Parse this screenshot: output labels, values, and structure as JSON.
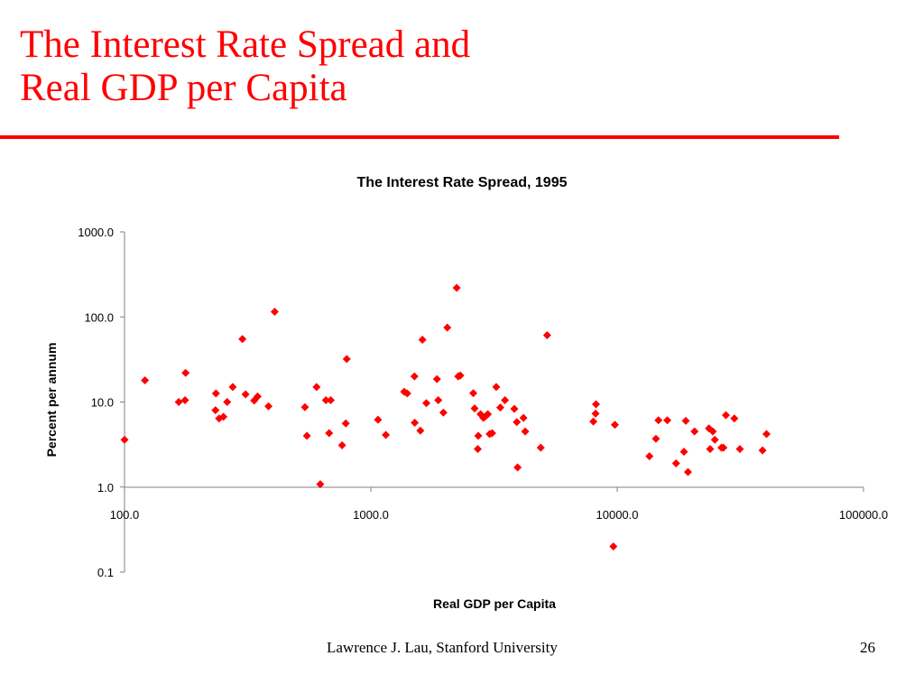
{
  "slide": {
    "title_line1": "The Interest Rate Spread and",
    "title_line2": "Real GDP per Capita",
    "accent_color": "#ff0000"
  },
  "footer": {
    "author": "Lawrence J. Lau, Stanford University",
    "page_number": "26"
  },
  "chart_data": {
    "type": "scatter",
    "title": "The Interest Rate Spread, 1995",
    "xlabel": "Real GDP per Capita",
    "ylabel": "Percent per annum",
    "x_scale": "log",
    "y_scale": "log",
    "xlim": [
      100,
      100000
    ],
    "ylim": [
      0.1,
      1000
    ],
    "x_ticks": [
      "100.0",
      "1000.0",
      "10000.0",
      "100000.0"
    ],
    "y_ticks": [
      "1000.0",
      "100.0",
      "10.0",
      "1.0",
      "0.1"
    ],
    "grid": false,
    "legend": "none",
    "marker": "diamond",
    "marker_color": "#ff0000",
    "series": [
      {
        "points": [
          [
            100,
            3.6
          ],
          [
            121,
            18
          ],
          [
            166,
            10
          ],
          [
            176,
            10.5
          ],
          [
            177,
            22
          ],
          [
            234,
            8
          ],
          [
            235,
            12.6
          ],
          [
            242,
            6.4
          ],
          [
            252,
            6.7
          ],
          [
            261,
            10
          ],
          [
            275,
            15
          ],
          [
            301,
            55
          ],
          [
            310,
            12.3
          ],
          [
            336,
            10.4
          ],
          [
            347,
            11.6
          ],
          [
            384,
            8.9
          ],
          [
            407,
            115
          ],
          [
            540,
            8.7
          ],
          [
            550,
            4
          ],
          [
            602,
            15
          ],
          [
            623,
            1.08
          ],
          [
            657,
            10.5
          ],
          [
            677,
            4.3
          ],
          [
            687,
            10.5
          ],
          [
            764,
            3.1
          ],
          [
            791,
            5.6
          ],
          [
            798,
            32
          ],
          [
            1069,
            6.2
          ],
          [
            1150,
            4.1
          ],
          [
            1365,
            13.2
          ],
          [
            1405,
            12.6
          ],
          [
            1503,
            20
          ],
          [
            1507,
            5.7
          ],
          [
            1588,
            4.6
          ],
          [
            1619,
            54
          ],
          [
            1680,
            9.7
          ],
          [
            1855,
            18.6
          ],
          [
            1877,
            10.5
          ],
          [
            1970,
            7.5
          ],
          [
            2043,
            75
          ],
          [
            2230,
            220
          ],
          [
            2263,
            20
          ],
          [
            2307,
            20.5
          ],
          [
            2605,
            12.7
          ],
          [
            2637,
            8.4
          ],
          [
            2716,
            2.8
          ],
          [
            2729,
            4
          ],
          [
            2788,
            7.2
          ],
          [
            2863,
            6.5
          ],
          [
            2922,
            6.8
          ],
          [
            2984,
            7.2
          ],
          [
            3035,
            4.2
          ],
          [
            3107,
            4.3
          ],
          [
            3229,
            15
          ],
          [
            3353,
            8.6
          ],
          [
            3502,
            10.5
          ],
          [
            3822,
            8.3
          ],
          [
            3913,
            5.8
          ],
          [
            3941,
            1.7
          ],
          [
            4165,
            6.5
          ],
          [
            4232,
            4.5
          ],
          [
            4894,
            2.9
          ],
          [
            5195,
            61
          ],
          [
            8001,
            5.9
          ],
          [
            8170,
            7.3
          ],
          [
            8201,
            9.4
          ],
          [
            9651,
            0.2
          ],
          [
            9786,
            5.4
          ],
          [
            13514,
            2.3
          ],
          [
            14359,
            3.7
          ],
          [
            14705,
            6.1
          ],
          [
            15975,
            6.1
          ],
          [
            17336,
            1.9
          ],
          [
            18665,
            2.6
          ],
          [
            18988,
            6
          ],
          [
            19379,
            1.5
          ],
          [
            20602,
            4.5
          ],
          [
            23574,
            4.9
          ],
          [
            23837,
            2.8
          ],
          [
            24433,
            4.5
          ],
          [
            24908,
            3.6
          ],
          [
            26500,
            2.9
          ],
          [
            26985,
            2.9
          ],
          [
            27624,
            7
          ],
          [
            29880,
            6.4
          ],
          [
            31475,
            2.8
          ],
          [
            38901,
            2.7
          ],
          [
            40375,
            4.2
          ]
        ]
      }
    ]
  }
}
